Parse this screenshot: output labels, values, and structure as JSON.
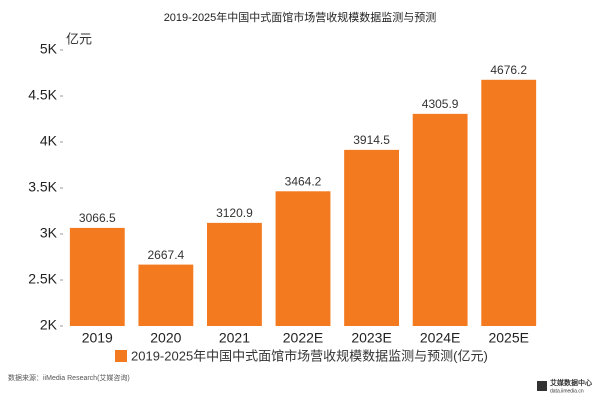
{
  "chart_data": {
    "type": "bar",
    "title": "2019-2025年中国中式面馆市场营收规模数据监测与预测",
    "y_label": "亿元",
    "categories": [
      "2019",
      "2020",
      "2021",
      "2022E",
      "2023E",
      "2024E",
      "2025E"
    ],
    "series": [
      {
        "name": "2019-2025年中国中式面馆市场营收规模数据监测与预测(亿元)",
        "color": "#f47a20",
        "values": [
          3066.5,
          2667.4,
          3120.9,
          3464.2,
          3914.5,
          4305.9,
          4676.2
        ]
      }
    ],
    "ylim": [
      2000,
      5000
    ],
    "yticks": [
      {
        "value": 2000,
        "label": "2K"
      },
      {
        "value": 2500,
        "label": "2.5K"
      },
      {
        "value": 3000,
        "label": "3K"
      },
      {
        "value": 3500,
        "label": "3.5K"
      },
      {
        "value": 4000,
        "label": "4K"
      },
      {
        "value": 4500,
        "label": "4.5K"
      },
      {
        "value": 5000,
        "label": "5K"
      }
    ],
    "grid": false,
    "source": "数据来源：iiMedia Research(艾媒咨询)",
    "logo": {
      "name": "艾媒数据中心",
      "url": "data.iimedia.cn"
    }
  }
}
